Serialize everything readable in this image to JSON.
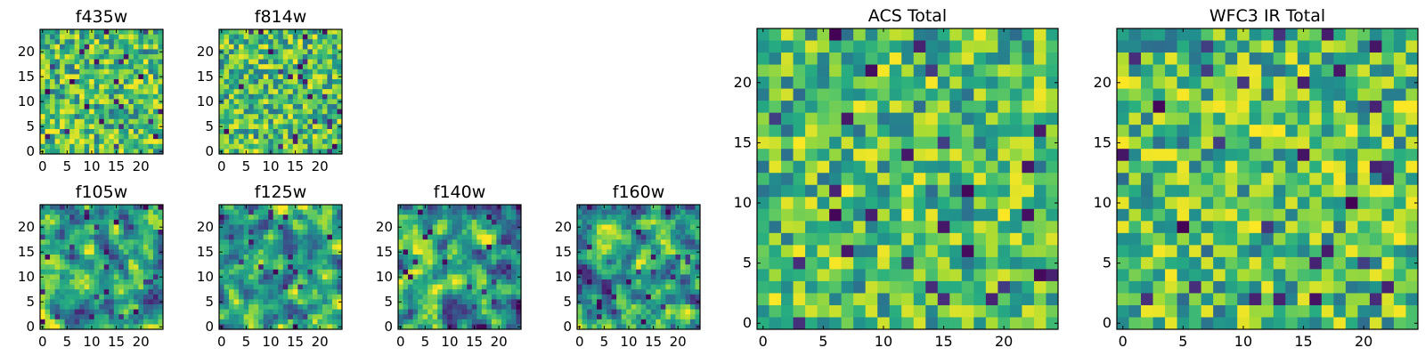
{
  "chart_data": [
    {
      "id": "f435w",
      "type": "heatmap",
      "title": "f435w",
      "size": 25,
      "xlim": [
        -0.5,
        24.5
      ],
      "ylim": [
        -0.5,
        24.5
      ],
      "xticks": [
        0,
        5,
        10,
        15,
        20
      ],
      "yticks": [
        0,
        5,
        10,
        15,
        20
      ],
      "colormap": "viridis",
      "seed": 11,
      "blur": 0
    },
    {
      "id": "f814w",
      "type": "heatmap",
      "title": "f814w",
      "size": 25,
      "xlim": [
        -0.5,
        24.5
      ],
      "ylim": [
        -0.5,
        24.5
      ],
      "xticks": [
        0,
        5,
        10,
        15,
        20
      ],
      "yticks": [
        0,
        5,
        10,
        15,
        20
      ],
      "colormap": "viridis",
      "seed": 23,
      "blur": 0
    },
    {
      "id": "f105w",
      "type": "heatmap",
      "title": "f105w",
      "size": 25,
      "xlim": [
        -0.5,
        24.5
      ],
      "ylim": [
        -0.5,
        24.5
      ],
      "xticks": [
        0,
        5,
        10,
        15,
        20
      ],
      "yticks": [
        0,
        5,
        10,
        15,
        20
      ],
      "colormap": "viridis",
      "seed": 37,
      "blur": 1
    },
    {
      "id": "f125w",
      "type": "heatmap",
      "title": "f125w",
      "size": 25,
      "xlim": [
        -0.5,
        24.5
      ],
      "ylim": [
        -0.5,
        24.5
      ],
      "xticks": [
        0,
        5,
        10,
        15,
        20
      ],
      "yticks": [
        0,
        5,
        10,
        15,
        20
      ],
      "colormap": "viridis",
      "seed": 41,
      "blur": 1
    },
    {
      "id": "f140w",
      "type": "heatmap",
      "title": "f140w",
      "size": 25,
      "xlim": [
        -0.5,
        24.5
      ],
      "ylim": [
        -0.5,
        24.5
      ],
      "xticks": [
        0,
        5,
        10,
        15,
        20
      ],
      "yticks": [
        0,
        5,
        10,
        15,
        20
      ],
      "colormap": "viridis",
      "seed": 53,
      "blur": 1
    },
    {
      "id": "f160w",
      "type": "heatmap",
      "title": "f160w",
      "size": 25,
      "xlim": [
        -0.5,
        24.5
      ],
      "ylim": [
        -0.5,
        24.5
      ],
      "xticks": [
        0,
        5,
        10,
        15,
        20
      ],
      "yticks": [
        0,
        5,
        10,
        15,
        20
      ],
      "colormap": "viridis",
      "seed": 67,
      "blur": 1
    },
    {
      "id": "acs_total",
      "type": "heatmap",
      "title": "ACS Total",
      "size": 25,
      "xlim": [
        -0.5,
        24.5
      ],
      "ylim": [
        -0.5,
        24.5
      ],
      "xticks": [
        0,
        5,
        10,
        15,
        20
      ],
      "yticks": [
        0,
        5,
        10,
        15,
        20
      ],
      "colormap": "viridis",
      "seed": 79,
      "blur": 0
    },
    {
      "id": "wfc3_ir_total",
      "type": "heatmap",
      "title": "WFC3 IR Total",
      "size": 25,
      "xlim": [
        -0.5,
        24.5
      ],
      "ylim": [
        -0.5,
        24.5
      ],
      "xticks": [
        0,
        5,
        10,
        15,
        20
      ],
      "yticks": [
        0,
        5,
        10,
        15,
        20
      ],
      "colormap": "viridis",
      "seed": 97,
      "blur": 0
    }
  ]
}
